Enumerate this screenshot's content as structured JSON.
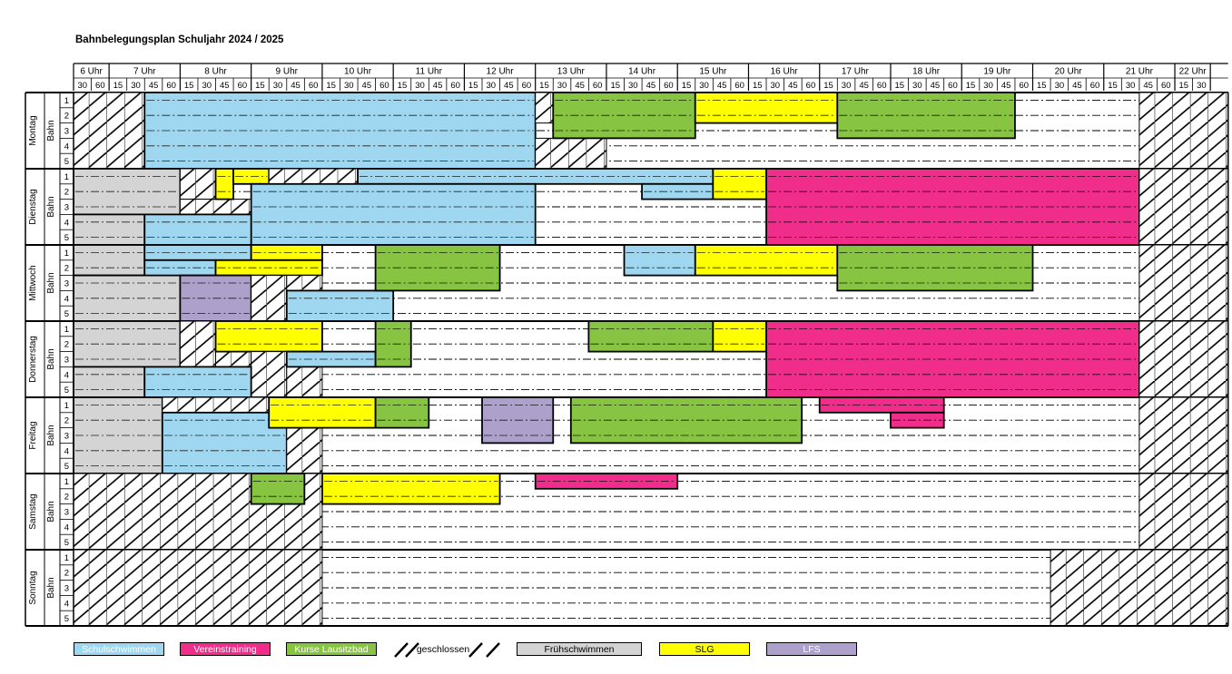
{
  "title": "Bahnbelegungsplan Schuljahr 2024 / 2025",
  "hours": [
    {
      "label": "6 Uhr",
      "subs": [
        "30",
        "60"
      ]
    },
    {
      "label": "7 Uhr",
      "subs": [
        "15",
        "30",
        "45",
        "60"
      ]
    },
    {
      "label": "8 Uhr",
      "subs": [
        "15",
        "30",
        "45",
        "60"
      ]
    },
    {
      "label": "9 Uhr",
      "subs": [
        "15",
        "30",
        "45",
        "60"
      ]
    },
    {
      "label": "10 Uhr",
      "subs": [
        "15",
        "30",
        "45",
        "60"
      ]
    },
    {
      "label": "11 Uhr",
      "subs": [
        "15",
        "30",
        "45",
        "60"
      ]
    },
    {
      "label": "12 Uhr",
      "subs": [
        "15",
        "30",
        "45",
        "60"
      ]
    },
    {
      "label": "13 Uhr",
      "subs": [
        "15",
        "30",
        "45",
        "60"
      ]
    },
    {
      "label": "14 Uhr",
      "subs": [
        "15",
        "30",
        "45",
        "60"
      ]
    },
    {
      "label": "15 Uhr",
      "subs": [
        "15",
        "30",
        "45",
        "60"
      ]
    },
    {
      "label": "16 Uhr",
      "subs": [
        "15",
        "30",
        "45",
        "60"
      ]
    },
    {
      "label": "17 Uhr",
      "subs": [
        "15",
        "30",
        "45",
        "60"
      ]
    },
    {
      "label": "18 Uhr",
      "subs": [
        "15",
        "30",
        "45",
        "60"
      ]
    },
    {
      "label": "19 Uhr",
      "subs": [
        "15",
        "30",
        "45",
        "60"
      ]
    },
    {
      "label": "20 Uhr",
      "subs": [
        "15",
        "30",
        "45",
        "60"
      ]
    },
    {
      "label": "21 Uhr",
      "subs": [
        "15",
        "30",
        "45",
        "60"
      ]
    },
    {
      "label": "22 Uhr",
      "subs": [
        "15",
        "30"
      ]
    }
  ],
  "lane_word": "Bahn",
  "lanes": [
    "1",
    "2",
    "3",
    "4",
    "5"
  ],
  "colors": {
    "S": "#9ed7ef",
    "V": "#f02d8a",
    "K": "#86c441",
    "F": "#d4d4d4",
    "G": "#ffff00",
    "L": "#ada1cb"
  },
  "days": [
    {
      "name": "Montag",
      "blocks": [
        {
          "t": "X",
          "r": [
            1,
            5
          ],
          "c": [
            0,
            3
          ]
        },
        {
          "t": "S",
          "r": [
            1,
            5
          ],
          "c": [
            4,
            25
          ]
        },
        {
          "t": "X",
          "r": [
            1,
            2
          ],
          "c": [
            26,
            26
          ]
        },
        {
          "t": "X",
          "r": [
            4,
            5
          ],
          "c": [
            26,
            29
          ]
        },
        {
          "t": "K",
          "r": [
            1,
            3
          ],
          "c": [
            27,
            34
          ]
        },
        {
          "t": "G",
          "r": [
            1,
            2
          ],
          "c": [
            35,
            42
          ]
        },
        {
          "t": "K",
          "r": [
            1,
            3
          ],
          "c": [
            43,
            52
          ]
        },
        {
          "t": "X",
          "r": [
            1,
            5
          ],
          "c": [
            60,
            64
          ]
        }
      ]
    },
    {
      "name": "Dienstag",
      "blocks": [
        {
          "t": "F",
          "r": [
            1,
            3
          ],
          "c": [
            0,
            5
          ]
        },
        {
          "t": "F",
          "r": [
            4,
            5
          ],
          "c": [
            0,
            3
          ]
        },
        {
          "t": "X",
          "r": [
            1,
            2
          ],
          "c": [
            6,
            7
          ]
        },
        {
          "t": "X",
          "r": [
            3,
            3
          ],
          "c": [
            6,
            9
          ]
        },
        {
          "t": "G",
          "r": [
            1,
            2
          ],
          "c": [
            8,
            8
          ]
        },
        {
          "t": "G",
          "r": [
            1,
            1
          ],
          "c": [
            9,
            10
          ]
        },
        {
          "t": "X",
          "r": [
            1,
            1
          ],
          "c": [
            11,
            15
          ]
        },
        {
          "t": "S",
          "r": [
            1,
            1
          ],
          "c": [
            16,
            35
          ]
        },
        {
          "t": "S",
          "r": [
            2,
            5
          ],
          "c": [
            10,
            25
          ]
        },
        {
          "t": "S",
          "r": [
            4,
            5
          ],
          "c": [
            4,
            9
          ]
        },
        {
          "t": "S",
          "r": [
            2,
            2
          ],
          "c": [
            32,
            35
          ]
        },
        {
          "t": "G",
          "r": [
            1,
            2
          ],
          "c": [
            36,
            38
          ]
        },
        {
          "t": "V",
          "r": [
            1,
            5
          ],
          "c": [
            39,
            59
          ]
        },
        {
          "t": "X",
          "r": [
            1,
            5
          ],
          "c": [
            60,
            64
          ]
        }
      ]
    },
    {
      "name": "Mittwoch",
      "blocks": [
        {
          "t": "F",
          "r": [
            1,
            2
          ],
          "c": [
            0,
            3
          ]
        },
        {
          "t": "F",
          "r": [
            3,
            5
          ],
          "c": [
            0,
            5
          ]
        },
        {
          "t": "S",
          "r": [
            1,
            1
          ],
          "c": [
            4,
            9
          ]
        },
        {
          "t": "S",
          "r": [
            2,
            2
          ],
          "c": [
            4,
            7
          ]
        },
        {
          "t": "G",
          "r": [
            1,
            1
          ],
          "c": [
            10,
            13
          ]
        },
        {
          "t": "G",
          "r": [
            2,
            2
          ],
          "c": [
            8,
            13
          ]
        },
        {
          "t": "L",
          "r": [
            3,
            5
          ],
          "c": [
            6,
            9
          ]
        },
        {
          "t": "X",
          "r": [
            3,
            5
          ],
          "c": [
            10,
            11
          ]
        },
        {
          "t": "X",
          "r": [
            3,
            3
          ],
          "c": [
            12,
            13
          ]
        },
        {
          "t": "S",
          "r": [
            4,
            5
          ],
          "c": [
            12,
            17
          ]
        },
        {
          "t": "K",
          "r": [
            1,
            3
          ],
          "c": [
            17,
            23
          ]
        },
        {
          "t": "S",
          "r": [
            1,
            2
          ],
          "c": [
            31,
            34
          ]
        },
        {
          "t": "G",
          "r": [
            1,
            2
          ],
          "c": [
            35,
            42
          ]
        },
        {
          "t": "K",
          "r": [
            1,
            3
          ],
          "c": [
            43,
            53
          ]
        },
        {
          "t": "X",
          "r": [
            1,
            5
          ],
          "c": [
            60,
            64
          ]
        }
      ]
    },
    {
      "name": "Donnerstag",
      "blocks": [
        {
          "t": "F",
          "r": [
            1,
            3
          ],
          "c": [
            0,
            5
          ]
        },
        {
          "t": "F",
          "r": [
            4,
            5
          ],
          "c": [
            0,
            3
          ]
        },
        {
          "t": "X",
          "r": [
            1,
            3
          ],
          "c": [
            6,
            7
          ]
        },
        {
          "t": "X",
          "r": [
            3,
            3
          ],
          "c": [
            8,
            9
          ]
        },
        {
          "t": "G",
          "r": [
            1,
            2
          ],
          "c": [
            8,
            13
          ]
        },
        {
          "t": "X",
          "r": [
            3,
            5
          ],
          "c": [
            10,
            11
          ]
        },
        {
          "t": "X",
          "r": [
            4,
            5
          ],
          "c": [
            12,
            13
          ]
        },
        {
          "t": "S",
          "r": [
            4,
            5
          ],
          "c": [
            4,
            9
          ]
        },
        {
          "t": "S",
          "r": [
            3,
            3
          ],
          "c": [
            12,
            16
          ]
        },
        {
          "t": "K",
          "r": [
            1,
            3
          ],
          "c": [
            17,
            18
          ]
        },
        {
          "t": "K",
          "r": [
            1,
            2
          ],
          "c": [
            29,
            35
          ]
        },
        {
          "t": "G",
          "r": [
            1,
            2
          ],
          "c": [
            36,
            38
          ]
        },
        {
          "t": "V",
          "r": [
            1,
            5
          ],
          "c": [
            39,
            59
          ]
        },
        {
          "t": "X",
          "r": [
            1,
            5
          ],
          "c": [
            60,
            64
          ]
        }
      ]
    },
    {
      "name": "Freitag",
      "blocks": [
        {
          "t": "F",
          "r": [
            1,
            5
          ],
          "c": [
            0,
            4
          ]
        },
        {
          "t": "X",
          "r": [
            1,
            1
          ],
          "c": [
            5,
            10
          ]
        },
        {
          "t": "S",
          "r": [
            2,
            5
          ],
          "c": [
            5,
            11
          ]
        },
        {
          "t": "X",
          "r": [
            3,
            5
          ],
          "c": [
            12,
            13
          ]
        },
        {
          "t": "G",
          "r": [
            1,
            2
          ],
          "c": [
            11,
            16
          ]
        },
        {
          "t": "K",
          "r": [
            1,
            2
          ],
          "c": [
            17,
            19
          ]
        },
        {
          "t": "L",
          "r": [
            1,
            3
          ],
          "c": [
            23,
            26
          ]
        },
        {
          "t": "K",
          "r": [
            1,
            3
          ],
          "c": [
            28,
            40
          ]
        },
        {
          "t": "V",
          "r": [
            1,
            1
          ],
          "c": [
            42,
            48
          ]
        },
        {
          "t": "V",
          "r": [
            2,
            2
          ],
          "c": [
            46,
            48
          ]
        },
        {
          "t": "X",
          "r": [
            1,
            5
          ],
          "c": [
            60,
            64
          ]
        }
      ]
    },
    {
      "name": "Samstag",
      "blocks": [
        {
          "t": "X",
          "r": [
            1,
            5
          ],
          "c": [
            0,
            13
          ]
        },
        {
          "t": "K",
          "r": [
            1,
            2
          ],
          "c": [
            10,
            12
          ]
        },
        {
          "t": "G",
          "r": [
            1,
            2
          ],
          "c": [
            14,
            23
          ]
        },
        {
          "t": "V",
          "r": [
            1,
            1
          ],
          "c": [
            26,
            33
          ]
        },
        {
          "t": "X",
          "r": [
            1,
            5
          ],
          "c": [
            60,
            64
          ]
        }
      ]
    },
    {
      "name": "Sonntag",
      "blocks": [
        {
          "t": "X",
          "r": [
            1,
            5
          ],
          "c": [
            0,
            13
          ]
        },
        {
          "t": "X",
          "r": [
            1,
            5
          ],
          "c": [
            55,
            64
          ]
        }
      ]
    }
  ],
  "legend": [
    {
      "key": "S",
      "label": "Schulschwimmen"
    },
    {
      "key": "V",
      "label": "Vereinstraining"
    },
    {
      "key": "K",
      "label": "Kurse Lausitzbad"
    },
    {
      "key": "X",
      "label": "geschlossen"
    },
    {
      "key": "F",
      "label": "Frühschwimmen"
    },
    {
      "key": "G",
      "label": "SLG"
    },
    {
      "key": "L",
      "label": "LFS"
    }
  ]
}
